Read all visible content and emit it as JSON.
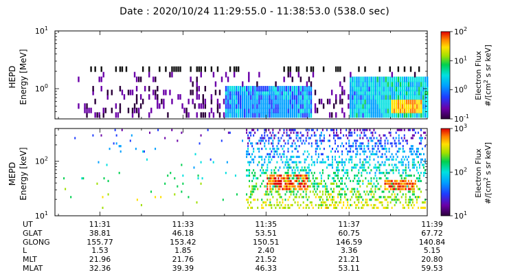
{
  "header": {
    "title": "Date : 2020/10/24 11:29:55.0 - 11:38:53.0 (538.0 sec)"
  },
  "chart_data": [
    {
      "type": "heatmap",
      "panel": "HEPD",
      "ylabel": [
        "HEPD",
        "Energy [MeV]"
      ],
      "yscale": "log",
      "yticks": [
        {
          "value": 1,
          "label": "10",
          "exp": "0"
        },
        {
          "value": 10,
          "label": "10",
          "exp": "1"
        }
      ],
      "ylim": [
        0.3,
        10
      ],
      "xlim": [
        "11:29:55",
        "11:38:53"
      ],
      "colorbar": {
        "label": [
          "Electron Flux",
          "#/[cm",
          "2",
          " s sr keV]"
        ],
        "scale": "log",
        "ticks": [
          {
            "value": 0.1,
            "label": "10",
            "exp": "-1"
          },
          {
            "value": 1,
            "label": "10",
            "exp": "0"
          },
          {
            "value": 10,
            "label": "10",
            "exp": "1"
          },
          {
            "value": 100,
            "label": "10",
            "exp": "2"
          }
        ],
        "range": [
          0.1,
          100
        ]
      },
      "features": [
        {
          "x_range": [
            "11:34:20",
            "11:35:45"
          ],
          "energy_range_mev": [
            0.35,
            0.6
          ],
          "flux": 1.0
        },
        {
          "x_range": [
            "11:38:00",
            "11:38:45"
          ],
          "energy_range_mev": [
            0.4,
            0.6
          ],
          "flux": 30
        }
      ]
    },
    {
      "type": "heatmap",
      "panel": "MEPD",
      "ylabel": [
        "MEPD",
        "Energy [keV]"
      ],
      "yscale": "log",
      "yticks": [
        {
          "value": 10,
          "label": "10",
          "exp": "1"
        },
        {
          "value": 100,
          "label": "10",
          "exp": "2"
        }
      ],
      "ylim": [
        10,
        400
      ],
      "xlim": [
        "11:29:55",
        "11:38:53"
      ],
      "colorbar": {
        "label": [
          "Electron Flux",
          "#/[cm",
          "2",
          " s sr keV]"
        ],
        "scale": "log",
        "ticks": [
          {
            "value": 10,
            "label": "10",
            "exp": "1"
          },
          {
            "value": 100,
            "label": "10",
            "exp": "2"
          },
          {
            "value": 1000,
            "label": "10",
            "exp": "3"
          }
        ],
        "range": [
          10,
          1000
        ]
      },
      "features": [
        {
          "x_range": [
            "11:35:00",
            "11:36:00"
          ],
          "energy_range_kev": [
            30,
            60
          ],
          "flux": 700
        },
        {
          "x_range": [
            "11:37:50",
            "11:38:35"
          ],
          "energy_range_kev": [
            30,
            45
          ],
          "flux": 800
        }
      ]
    }
  ],
  "ephemeris": {
    "rows": [
      {
        "label": "UT",
        "values": [
          "11:31",
          "11:33",
          "11:35",
          "11:37",
          "11:39"
        ]
      },
      {
        "label": "GLAT",
        "values": [
          "38.81",
          "46.18",
          "53.51",
          "60.75",
          "67.72"
        ]
      },
      {
        "label": "GLONG",
        "values": [
          "155.77",
          "153.42",
          "150.51",
          "146.59",
          "140.84"
        ]
      },
      {
        "label": "L",
        "values": [
          "1.53",
          "1.85",
          "2.40",
          "3.36",
          "5.15"
        ]
      },
      {
        "label": "MLT",
        "values": [
          "21.96",
          "21.76",
          "21.52",
          "21.21",
          "20.80"
        ]
      },
      {
        "label": "MLAT",
        "values": [
          "32.36",
          "39.39",
          "46.33",
          "53.11",
          "59.53"
        ]
      }
    ]
  },
  "colors": {
    "colormap": [
      "#2b003a",
      "#6a00a8",
      "#1e3cff",
      "#00a0ff",
      "#00e0e0",
      "#00d050",
      "#a0e000",
      "#ffe000",
      "#ff8000",
      "#e00000"
    ]
  }
}
